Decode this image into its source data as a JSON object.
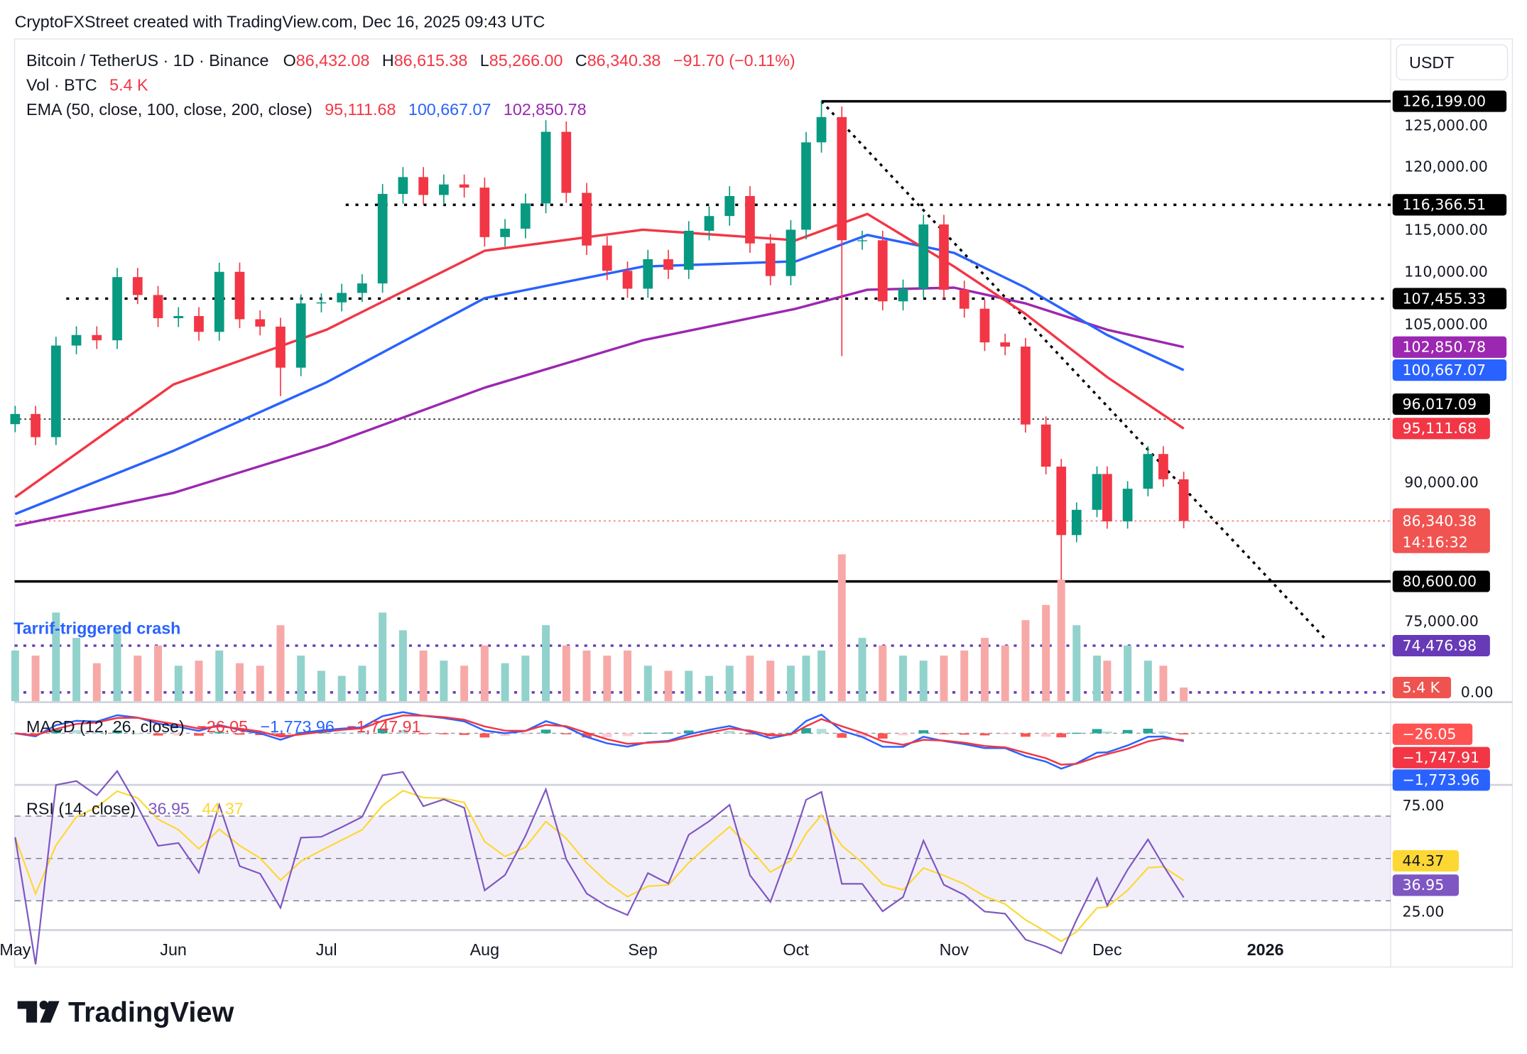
{
  "header": {
    "caption": "CryptoFXStreet created with TradingView.com, Dec 16, 2025 09:43 UTC"
  },
  "legend": {
    "symbol": "Bitcoin / TetherUS · 1D · Binance",
    "o_label": "O",
    "open": "86,432.08",
    "h_label": "H",
    "high": "86,615.38",
    "l_label": "L",
    "low": "85,266.00",
    "c_label": "C",
    "close": "86,340.38",
    "change": "−91.70 (−0.11%)",
    "vol_label": "Vol · BTC",
    "vol_value": "5.4 K",
    "ema_label": "EMA (50, close, 100, close, 200, close)",
    "ema50": "95,111.68",
    "ema100": "100,667.07",
    "ema200": "102,850.78",
    "macd_label": "MACD (12, 26, close)",
    "macd_hist": "−26.05",
    "macd_line": "−1,773.96",
    "macd_signal": "−1,747.91",
    "rsi_label": "RSI (14, close)",
    "rsi_value": "36.95",
    "rsi_ma": "44.37"
  },
  "currency_button": "USDT",
  "annotation": "Tarrif-triggered crash",
  "price_axis_ticks": [
    "125,000.00",
    "120,000.00",
    "115,000.00",
    "110,000.00",
    "105,000.00",
    "90,000.00",
    "75,000.00",
    "0.00"
  ],
  "rsi_axis_ticks": [
    "75.00",
    "25.00"
  ],
  "badges": {
    "ath": "126,199.00",
    "res1": "116,366.51",
    "res2": "107,455.33",
    "ema200": "102,850.78",
    "ema100": "100,667.07",
    "level96": "96,017.09",
    "ema50": "95,111.68",
    "price": "86,340.38",
    "countdown": "14:16:32",
    "support": "80,600.00",
    "level74": "74,476.98",
    "volume": "5.4 K",
    "macd_hist": "−26.05",
    "macd_signal": "−1,747.91",
    "macd_line": "−1,773.96",
    "rsi_ma": "44.37",
    "rsi": "36.95"
  },
  "time_axis": [
    "May",
    "Jun",
    "Jul",
    "Aug",
    "Sep",
    "Oct",
    "Nov",
    "Dec",
    "2026"
  ],
  "logo": "TradingView",
  "colors": {
    "up": "#089981",
    "down": "#f23645",
    "vol_up": "#92d2cc",
    "vol_down": "#f7a9a7",
    "ema50": "#f23645",
    "ema100": "#2962ff",
    "ema200": "#9c27b0",
    "rsi": "#7e57c2",
    "rsi_ma": "#fdd835",
    "annotation": "#2962ff",
    "level74": "#673ab7",
    "price": "#f05350"
  },
  "chart_data": {
    "type": "candlestick",
    "symbol": "BTCUSDT",
    "timeframe": "1D",
    "dates": [
      "2025-05-01",
      "2025-05-05",
      "2025-05-09",
      "2025-05-13",
      "2025-05-17",
      "2025-05-21",
      "2025-05-25",
      "2025-05-29",
      "2025-06-02",
      "2025-06-06",
      "2025-06-10",
      "2025-06-14",
      "2025-06-18",
      "2025-06-22",
      "2025-06-26",
      "2025-06-30",
      "2025-07-04",
      "2025-07-08",
      "2025-07-12",
      "2025-07-16",
      "2025-07-20",
      "2025-07-24",
      "2025-07-28",
      "2025-08-01",
      "2025-08-05",
      "2025-08-09",
      "2025-08-13",
      "2025-08-17",
      "2025-08-21",
      "2025-08-25",
      "2025-08-29",
      "2025-09-02",
      "2025-09-06",
      "2025-09-10",
      "2025-09-14",
      "2025-09-18",
      "2025-09-22",
      "2025-09-26",
      "2025-09-30",
      "2025-10-03",
      "2025-10-06",
      "2025-10-10",
      "2025-10-14",
      "2025-10-18",
      "2025-10-22",
      "2025-10-26",
      "2025-10-30",
      "2025-11-03",
      "2025-11-07",
      "2025-11-11",
      "2025-11-15",
      "2025-11-19",
      "2025-11-22",
      "2025-11-25",
      "2025-11-29",
      "2025-12-01",
      "2025-12-05",
      "2025-12-09",
      "2025-12-12",
      "2025-12-16"
    ],
    "close": [
      96500,
      94300,
      103000,
      104000,
      103500,
      109500,
      107800,
      105600,
      105800,
      104300,
      110000,
      105500,
      104800,
      100900,
      107000,
      107100,
      108000,
      108900,
      117400,
      119000,
      117300,
      118300,
      118000,
      113300,
      114100,
      116500,
      123300,
      117500,
      112500,
      110100,
      108400,
      111200,
      110200,
      113900,
      115300,
      117200,
      112700,
      109600,
      114000,
      122300,
      124700,
      113000,
      113000,
      107200,
      108400,
      114500,
      108300,
      106500,
      103300,
      102900,
      95500,
      91500,
      85000,
      87400,
      90800,
      86300,
      89400,
      92700,
      90300,
      86340.38
    ],
    "wick_overrides": {
      "2025-10-06": {
        "high": 126199
      },
      "2025-10-10": {
        "low": 102000
      },
      "2025-11-22": {
        "low": 80600
      },
      "2025-08-13": {
        "high": 124400
      },
      "2025-06-22": {
        "low": 98200
      }
    },
    "volume_k": [
      20,
      18,
      35,
      25,
      15,
      28,
      18,
      22,
      14,
      16,
      20,
      15,
      14,
      30,
      18,
      12,
      10,
      14,
      35,
      28,
      20,
      16,
      14,
      22,
      15,
      18,
      30,
      22,
      20,
      18,
      20,
      14,
      12,
      12,
      10,
      14,
      18,
      16,
      14,
      18,
      20,
      58,
      25,
      22,
      18,
      16,
      18,
      20,
      25,
      22,
      32,
      38,
      48,
      30,
      18,
      16,
      22,
      16,
      14,
      5.4
    ],
    "ema": {
      "dates": [
        "2025-05-01",
        "2025-06-01",
        "2025-07-01",
        "2025-08-01",
        "2025-09-01",
        "2025-10-01",
        "2025-10-15",
        "2025-11-01",
        "2025-11-15",
        "2025-12-01",
        "2025-12-16"
      ],
      "ema50": [
        88600,
        99300,
        104500,
        112000,
        114000,
        113000,
        115500,
        110500,
        106000,
        100000,
        95111.68
      ],
      "ema100": [
        87000,
        93000,
        99500,
        107500,
        110500,
        111000,
        113500,
        111800,
        108500,
        104000,
        100667.07
      ],
      "ema200": [
        85900,
        89000,
        93500,
        99000,
        103500,
        106500,
        108300,
        108500,
        107000,
        104500,
        102850.78
      ]
    },
    "levels": {
      "all_time_high": 126199.0,
      "resistance_1": 116366.51,
      "resistance_2": 107455.33,
      "level_96k": 96017.09,
      "support": 80600.0,
      "level_74k": 74476.98
    },
    "trendline": {
      "from": {
        "date": "2025-10-06",
        "price": 126199
      },
      "to": {
        "date": "2026-01-13",
        "price": 75000
      }
    },
    "macd": {
      "fast": 12,
      "slow": 26,
      "signal": 9,
      "hist": -26.05,
      "macd": -1773.96,
      "signal_value": -1747.91
    },
    "rsi": {
      "period": 14,
      "value": 36.95,
      "ma": 44.37,
      "upper": 70,
      "lower": 30
    },
    "price_range": [
      70000,
      128000
    ]
  }
}
